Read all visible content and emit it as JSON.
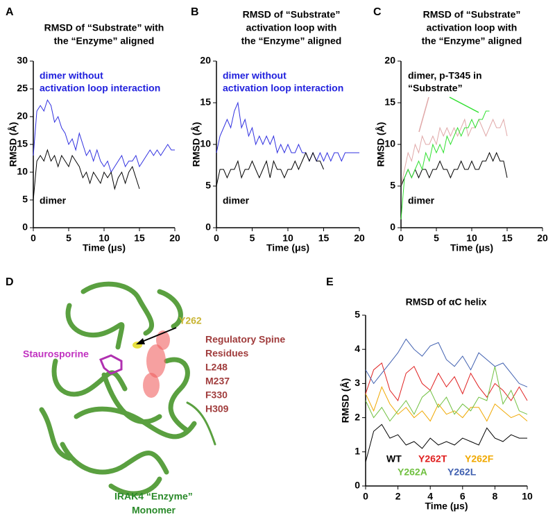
{
  "chart_data": [
    {
      "type": "line",
      "label": "A",
      "title": [
        "RMSD of “Substrate” with",
        "the “Enzyme” aligned"
      ],
      "xlabel": "Time (μs)",
      "ylabel": "RMSD (Å)",
      "xlim": [
        0,
        20
      ],
      "ylim": [
        0,
        30
      ],
      "xticks": [
        0,
        5,
        10,
        15,
        20
      ],
      "yticks": [
        0,
        5,
        10,
        15,
        20,
        25,
        30
      ],
      "annotations": [
        {
          "lines": [
            "dimer without",
            "activation loop interaction"
          ],
          "color": "#2020dd"
        },
        {
          "lines": [
            "dimer"
          ],
          "color": "#000000"
        }
      ],
      "series": [
        {
          "color": "#3030e0",
          "x": [
            0,
            0.5,
            1,
            1.5,
            2,
            2.5,
            3,
            3.5,
            4,
            4.5,
            5,
            5.5,
            6,
            6.5,
            7,
            7.5,
            8,
            8.5,
            9,
            9.5,
            10,
            10.5,
            11,
            11.5,
            12,
            12.5,
            13,
            13.5,
            14,
            14.5,
            15,
            15.5,
            16,
            16.5,
            17,
            17.5,
            18,
            18.5,
            19,
            19.5,
            20
          ],
          "values": [
            13,
            21,
            22,
            21,
            23,
            22,
            19,
            20,
            18,
            17,
            15,
            16,
            14,
            17,
            15,
            13,
            14,
            12,
            14,
            12,
            11,
            12,
            10,
            11,
            12,
            13,
            11,
            12,
            12,
            13,
            11,
            12,
            13,
            14,
            13,
            14,
            13,
            14,
            15,
            14,
            14
          ]
        },
        {
          "color": "#000000",
          "x": [
            0,
            0.5,
            1,
            1.5,
            2,
            2.5,
            3,
            3.5,
            4,
            4.5,
            5,
            5.5,
            6,
            6.5,
            7,
            7.5,
            8,
            8.5,
            9,
            9.5,
            10,
            10.5,
            11,
            11.5,
            12,
            12.5,
            13,
            13.5,
            14,
            14.5,
            15
          ],
          "values": [
            5,
            12,
            13,
            12,
            14,
            12,
            13,
            11,
            13,
            12,
            11,
            13,
            12,
            11,
            9,
            10,
            8,
            10,
            9,
            8,
            10,
            9,
            10,
            7,
            9,
            10,
            8,
            10,
            11,
            9,
            7
          ]
        }
      ]
    },
    {
      "type": "line",
      "label": "B",
      "title": [
        "RMSD of “Substrate”",
        "activation loop with",
        "the “Enzyme” aligned"
      ],
      "xlabel": "Time (μs)",
      "ylabel": "RMSD (Å)",
      "xlim": [
        0,
        20
      ],
      "ylim": [
        0,
        20
      ],
      "xticks": [
        0,
        5,
        10,
        15,
        20
      ],
      "yticks": [
        0,
        5,
        10,
        15,
        20
      ],
      "annotations": [
        {
          "lines": [
            "dimer without",
            "activation loop interaction"
          ],
          "color": "#2020dd"
        },
        {
          "lines": [
            "dimer"
          ],
          "color": "#000000"
        }
      ],
      "series": [
        {
          "color": "#3030e0",
          "x": [
            0,
            0.5,
            1,
            1.5,
            2,
            2.5,
            3,
            3.5,
            4,
            4.5,
            5,
            5.5,
            6,
            6.5,
            7,
            7.5,
            8,
            8.5,
            9,
            9.5,
            10,
            10.5,
            11,
            11.5,
            12,
            12.5,
            13,
            13.5,
            14,
            14.5,
            15,
            15.5,
            16,
            16.5,
            17,
            17.5,
            18,
            18.5,
            19,
            19.5,
            20
          ],
          "values": [
            9,
            11,
            12,
            13,
            12,
            14,
            15,
            12,
            13,
            11,
            12,
            10,
            11,
            10,
            11,
            10,
            11,
            9,
            10,
            9,
            10,
            9,
            9,
            10,
            9,
            9,
            8,
            9,
            8,
            9,
            8,
            9,
            8,
            9,
            9,
            8,
            9,
            9,
            9,
            9,
            9
          ]
        },
        {
          "color": "#000000",
          "x": [
            0,
            0.5,
            1,
            1.5,
            2,
            2.5,
            3,
            3.5,
            4,
            4.5,
            5,
            5.5,
            6,
            6.5,
            7,
            7.5,
            8,
            8.5,
            9,
            9.5,
            10,
            10.5,
            11,
            11.5,
            12,
            12.5,
            13,
            13.5,
            14,
            14.5,
            15
          ],
          "values": [
            5,
            7,
            7,
            6,
            7,
            7,
            8,
            6,
            7,
            7,
            8,
            7,
            6,
            7,
            8,
            6,
            8,
            7,
            7,
            6,
            7,
            7,
            8,
            7,
            8,
            9,
            8,
            9,
            8,
            8,
            7
          ]
        }
      ]
    },
    {
      "type": "line",
      "label": "C",
      "title": [
        "RMSD of “Substrate”",
        "activation loop with",
        "the “Enzyme” aligned"
      ],
      "xlabel": "Time (μs)",
      "ylabel": "RMSD (Å)",
      "xlim": [
        0,
        20
      ],
      "ylim": [
        0,
        20
      ],
      "xticks": [
        0,
        5,
        10,
        15,
        20
      ],
      "yticks": [
        0,
        5,
        10,
        15,
        20
      ],
      "annotations": [
        {
          "lines": [
            "dimer, p-T345 in",
            "“Substrate”"
          ],
          "color": "#000000"
        },
        {
          "lines": [
            "dimer"
          ],
          "color": "#000000"
        }
      ],
      "series": [
        {
          "color": "#e0a8a8",
          "x": [
            0,
            0.5,
            1,
            1.5,
            2,
            2.5,
            3,
            3.5,
            4,
            4.5,
            5,
            5.5,
            6,
            6.5,
            7,
            7.5,
            8,
            8.5,
            9,
            9.5,
            10,
            10.5,
            11,
            11.5,
            12,
            12.5,
            13,
            13.5,
            14,
            14.5,
            15
          ],
          "values": [
            5,
            7,
            9,
            8,
            10,
            9,
            11,
            10,
            10,
            11,
            10,
            12,
            11,
            12,
            11,
            12,
            11,
            12,
            13,
            11,
            12,
            12,
            13,
            12,
            11,
            12,
            13,
            12,
            12,
            13,
            11
          ]
        },
        {
          "color": "#000000",
          "x": [
            0,
            0.5,
            1,
            1.5,
            2,
            2.5,
            3,
            3.5,
            4,
            4.5,
            5,
            5.5,
            6,
            6.5,
            7,
            7.5,
            8,
            8.5,
            9,
            9.5,
            10,
            10.5,
            11,
            11.5,
            12,
            12.5,
            13,
            13.5,
            14,
            14.5,
            15
          ],
          "values": [
            5,
            6,
            7,
            6,
            7,
            6,
            7,
            7,
            6,
            7,
            7,
            8,
            7,
            7,
            6,
            7,
            7,
            8,
            7,
            7,
            8,
            7,
            7,
            8,
            8,
            9,
            8,
            9,
            8,
            8,
            6
          ]
        },
        {
          "color": "#30e030",
          "x": [
            0,
            0.5,
            1,
            1.5,
            2,
            2.5,
            3,
            3.5,
            4,
            4.5,
            5,
            5.5,
            6,
            6.5,
            7,
            7.5,
            8,
            8.5,
            9,
            9.5,
            10,
            10.5,
            11,
            11.5,
            12,
            12.5
          ],
          "values": [
            1,
            6,
            7,
            6,
            7,
            8,
            7,
            9,
            8,
            10,
            9,
            10,
            9,
            11,
            10,
            11,
            12,
            11,
            12,
            12,
            13,
            12,
            13,
            13,
            14,
            14
          ]
        }
      ]
    },
    {
      "type": "line",
      "label": "E",
      "title": [
        "RMSD of αC helix"
      ],
      "xlabel": "Time (μs)",
      "ylabel": "RMSD (Å)",
      "xlim": [
        0,
        10
      ],
      "ylim": [
        0,
        5
      ],
      "xticks": [
        0,
        2,
        4,
        6,
        8,
        10
      ],
      "yticks": [
        0,
        1,
        2,
        3,
        4,
        5
      ],
      "annotations": [],
      "series": [
        {
          "name": "WT",
          "color": "#000000",
          "x": [
            0,
            0.5,
            1,
            1.5,
            2,
            2.5,
            3,
            3.5,
            4,
            4.5,
            5,
            5.5,
            6,
            6.5,
            7,
            7.5,
            8,
            8.5,
            9,
            9.5,
            10
          ],
          "values": [
            0.7,
            1.6,
            1.8,
            1.4,
            1.5,
            1.2,
            1.3,
            1.1,
            1.4,
            1.2,
            1.3,
            1.2,
            1.4,
            1.3,
            1.2,
            1.7,
            1.4,
            1.3,
            1.5,
            1.4,
            1.4
          ]
        },
        {
          "name": "Y262T",
          "color": "#e02020",
          "x": [
            0,
            0.5,
            1,
            1.5,
            2,
            2.5,
            3,
            3.5,
            4,
            4.5,
            5,
            5.5,
            6,
            6.5,
            7,
            7.5,
            8,
            8.5,
            9,
            9.5,
            10
          ],
          "values": [
            2.7,
            3.4,
            3.6,
            2.8,
            2.5,
            3.3,
            3.5,
            3.0,
            2.8,
            3.3,
            2.9,
            3.2,
            2.7,
            3.3,
            2.9,
            2.6,
            3.0,
            2.8,
            2.5,
            2.9,
            2.5
          ]
        },
        {
          "name": "Y262F",
          "color": "#f0a800",
          "x": [
            0,
            0.5,
            1,
            1.5,
            2,
            2.5,
            3,
            3.5,
            4,
            4.5,
            5,
            5.5,
            6,
            6.5,
            7,
            7.5,
            8,
            8.5,
            9,
            9.5,
            10
          ],
          "values": [
            2.7,
            2.2,
            2.9,
            2.4,
            2.1,
            2.3,
            2.0,
            2.2,
            1.9,
            2.4,
            2.1,
            2.2,
            2.0,
            2.3,
            2.3,
            1.9,
            2.4,
            2.2,
            2.0,
            2.1,
            1.9
          ]
        },
        {
          "name": "Y262A",
          "color": "#70c040",
          "x": [
            0,
            0.5,
            1,
            1.5,
            2,
            2.5,
            3,
            3.5,
            4,
            4.5,
            5,
            5.5,
            6,
            6.5,
            7,
            7.5,
            8,
            8.5,
            9,
            9.5,
            10
          ],
          "values": [
            2.5,
            2.0,
            2.3,
            1.9,
            2.2,
            2.5,
            2.1,
            2.6,
            2.8,
            2.3,
            2.6,
            2.1,
            2.4,
            2.2,
            2.6,
            2.5,
            3.5,
            2.4,
            2.8,
            2.2,
            2.1
          ]
        },
        {
          "name": "Y262L",
          "color": "#4060b0",
          "x": [
            0,
            0.5,
            1,
            1.5,
            2,
            2.5,
            3,
            3.5,
            4,
            4.5,
            5,
            5.5,
            6,
            6.5,
            7,
            7.5,
            8,
            8.5,
            9,
            9.5,
            10
          ],
          "values": [
            3.4,
            3.0,
            3.3,
            3.6,
            3.9,
            4.3,
            4.0,
            3.8,
            4.1,
            4.2,
            3.7,
            3.5,
            3.8,
            3.4,
            3.9,
            3.7,
            3.5,
            3.6,
            3.3,
            3.0,
            2.9
          ]
        }
      ]
    }
  ],
  "structure": {
    "label": "D",
    "residue": "Y262",
    "spine": [
      "Regulatory Spine",
      "Residues",
      "L248",
      "M237",
      "F330",
      "H309"
    ],
    "ligand": "Staurosporine",
    "protein": [
      "IRAK4 “Enzyme”",
      "Monomer"
    ]
  }
}
